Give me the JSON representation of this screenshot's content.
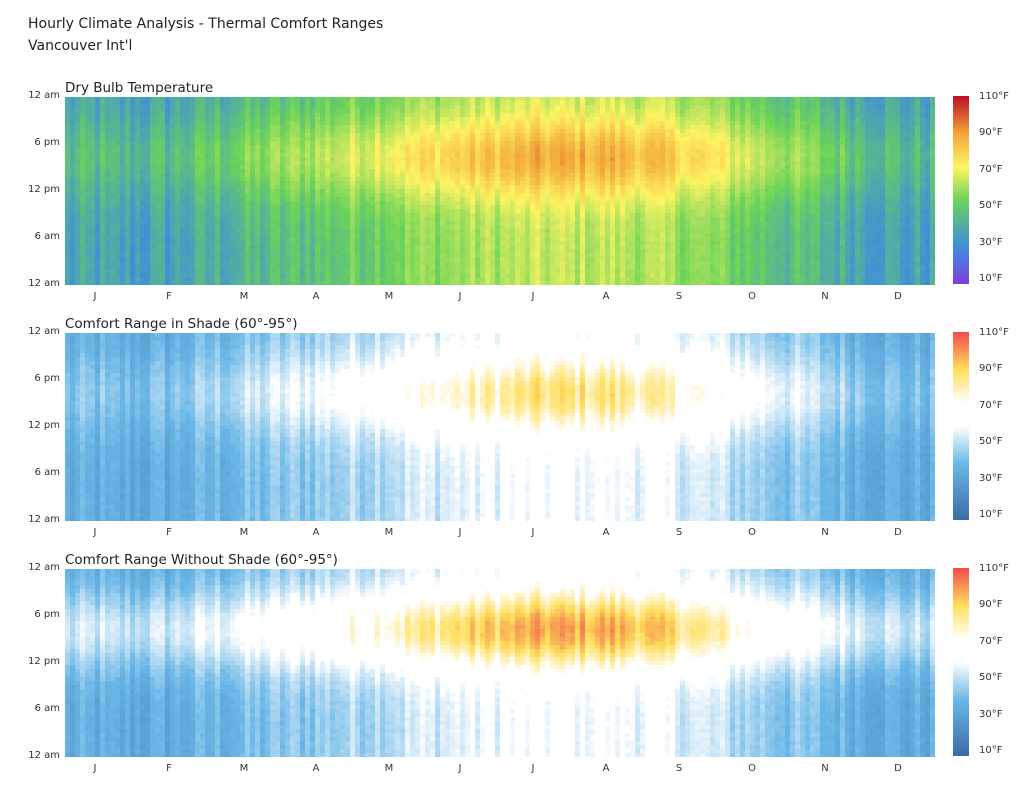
{
  "title": "Hourly Climate Analysis - Thermal Comfort Ranges",
  "subtitle": "Vancouver Int'l",
  "chart_data": [
    {
      "type": "heatmap",
      "title": "Dry Bulb Temperature",
      "y_tick_labels": [
        "12 am",
        "6 pm",
        "12 pm",
        "6 am",
        "12 am"
      ],
      "x_tick_labels": [
        "J",
        "F",
        "M",
        "A",
        "M",
        "J",
        "J",
        "A",
        "S",
        "O",
        "N",
        "D"
      ],
      "colorbar_labels": [
        "110°F",
        "90°F",
        "70°F",
        "50°F",
        "30°F",
        "10°F"
      ],
      "value_range": [
        10,
        110
      ],
      "colors": [
        "#7b3fe0",
        "#3f8fdc",
        "#6cd45a",
        "#fff463",
        "#f3a63a",
        "#b80f23"
      ],
      "monthly_mean_temperature_F": [
        38,
        40,
        45,
        50,
        56,
        61,
        65,
        65,
        60,
        51,
        44,
        39
      ]
    },
    {
      "type": "heatmap",
      "title": "Comfort Range in Shade (60°-95°)",
      "y_tick_labels": [
        "12 am",
        "6 pm",
        "12 pm",
        "6 am",
        "12 am"
      ],
      "x_tick_labels": [
        "J",
        "F",
        "M",
        "A",
        "M",
        "J",
        "J",
        "A",
        "S",
        "O",
        "N",
        "D"
      ],
      "colorbar_labels": [
        "110°F",
        "90°F",
        "70°F",
        "50°F",
        "30°F",
        "10°F"
      ],
      "value_range": [
        10,
        110
      ],
      "colors": [
        "#3a6ba8",
        "#6bb8e8",
        "#ffffff",
        "#ffffff",
        "#ffdf5c",
        "#f24b4b"
      ]
    },
    {
      "type": "heatmap",
      "title": "Comfort Range Without Shade  (60°-95°)",
      "y_tick_labels": [
        "12 am",
        "6 pm",
        "12 pm",
        "6 am",
        "12 am"
      ],
      "x_tick_labels": [
        "J",
        "F",
        "M",
        "A",
        "M",
        "J",
        "J",
        "A",
        "S",
        "O",
        "N",
        "D"
      ],
      "colorbar_labels": [
        "110°F",
        "90°F",
        "70°F",
        "50°F",
        "30°F",
        "10°F"
      ],
      "value_range": [
        10,
        110
      ],
      "colors": [
        "#3a6ba8",
        "#6bb8e8",
        "#ffffff",
        "#ffffff",
        "#ffdf5c",
        "#f24b4b"
      ]
    }
  ]
}
